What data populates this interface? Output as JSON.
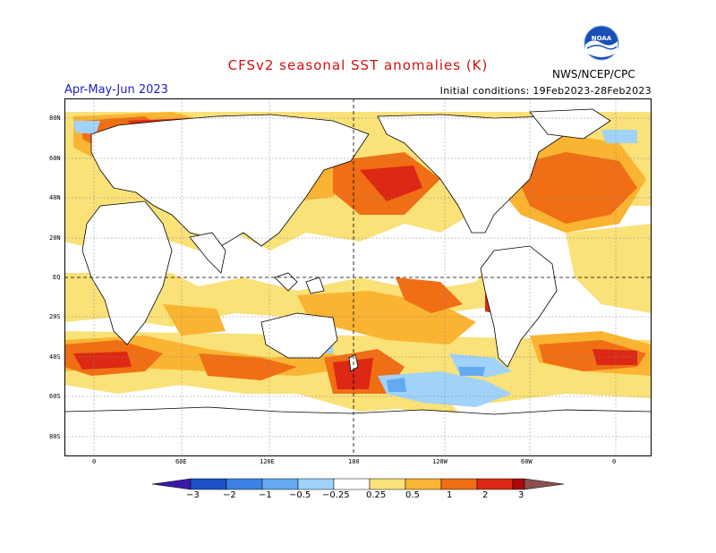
{
  "header": {
    "title": "CFSv2 seasonal SST anomalies (K)",
    "season": "Apr-May-Jun 2023",
    "initial_conditions": "Initial conditions: 19Feb2023-28Feb2023",
    "agency": "NWS/NCEP/CPC",
    "logo_text": "NOAA"
  },
  "axes": {
    "lat_labels": [
      "80N",
      "60N",
      "40N",
      "20N",
      "EQ",
      "20S",
      "40S",
      "60S",
      "80S"
    ],
    "lon_labels": [
      "0",
      "60E",
      "120E",
      "180",
      "120W",
      "60W",
      "0"
    ]
  },
  "legend": {
    "labels": [
      "−3",
      "−2",
      "−1",
      "−0.5",
      "−0.25",
      "0.25",
      "0.5",
      "1",
      "2",
      "3"
    ],
    "colors": [
      "#3c18a8",
      "#1e50c8",
      "#3c82e6",
      "#64aaf0",
      "#a0d2fa",
      "#ffffff",
      "#fae178",
      "#fab432",
      "#f06e14",
      "#dc2814",
      "#aa0a0a",
      "#8c5050"
    ]
  },
  "colors": {
    "anomaly_pos_weak": "#fae178",
    "anomaly_pos_mod": "#fab432",
    "anomaly_pos_strong": "#f06e14",
    "anomaly_pos_very_strong": "#dc2814",
    "anomaly_neg_weak": "#a0d2fa",
    "anomaly_neg_mod": "#64aaf0",
    "title_red": "#d01010",
    "season_blue": "#2020c0"
  }
}
